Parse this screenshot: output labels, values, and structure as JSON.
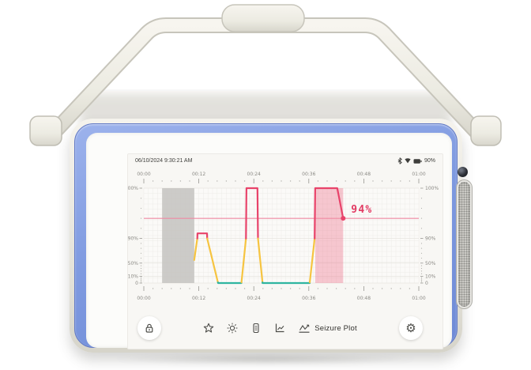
{
  "status_bar": {
    "date": "06/10/2024",
    "time": "9:30:21 AM",
    "battery_percent": "90%"
  },
  "chart_data": {
    "type": "line",
    "title": "Seizure Plot",
    "x_ticks": [
      "00:00",
      "00:12",
      "00:24",
      "00:36",
      "00:48",
      "01:00"
    ],
    "x_range_minutes": [
      0,
      60
    ],
    "x_minor_step_minutes": 2,
    "y_ticks": [
      "100%",
      "90%",
      "50%",
      "10%",
      "0"
    ],
    "y_tick_values": [
      100,
      90,
      50,
      10,
      0
    ],
    "y_scale_positions": [
      0,
      0.53,
      0.79,
      0.93,
      1
    ],
    "grid": true,
    "legend": "none",
    "threshold_value": 94,
    "threshold_label": "94%",
    "threshold_color": "#ef8aa3",
    "annotation_color": "#e23a62",
    "axis_text_color": "#8b8a85",
    "regions": [
      {
        "name": "gray",
        "from": 4,
        "to": 11,
        "color": "#c7c5c2",
        "opacity": 0.9
      },
      {
        "name": "pink-event",
        "from": 37.4,
        "to": 43.5,
        "color": "#ec4f72",
        "opacity": 0.3
      }
    ],
    "series": [
      {
        "name": "seizure-probability",
        "points": [
          [
            11,
            55
          ],
          [
            11.7,
            91
          ],
          [
            13.8,
            91
          ],
          [
            16.2,
            0
          ],
          [
            21.3,
            0
          ],
          [
            22.4,
            100
          ],
          [
            24.8,
            100
          ],
          [
            25.9,
            0
          ],
          [
            36.2,
            0
          ],
          [
            37.4,
            100
          ],
          [
            42.2,
            100
          ],
          [
            43.5,
            94
          ]
        ],
        "end_dot": true
      }
    ],
    "line_colors": {
      "high": "#e8436a",
      "mid": "#f6c440",
      "low": "#2fb5a0"
    },
    "color_rules": {
      "high_min": 90,
      "low_max": 1
    }
  },
  "toolbar": {
    "items": [
      {
        "icon": "event-star-icon",
        "label": ""
      },
      {
        "icon": "brightness-icon",
        "label": ""
      },
      {
        "icon": "battery-status-icon",
        "label": ""
      },
      {
        "icon": "trend-chart-icon",
        "label": ""
      },
      {
        "icon": "seizure-plot-icon",
        "label": "Seizure Plot"
      }
    ]
  }
}
